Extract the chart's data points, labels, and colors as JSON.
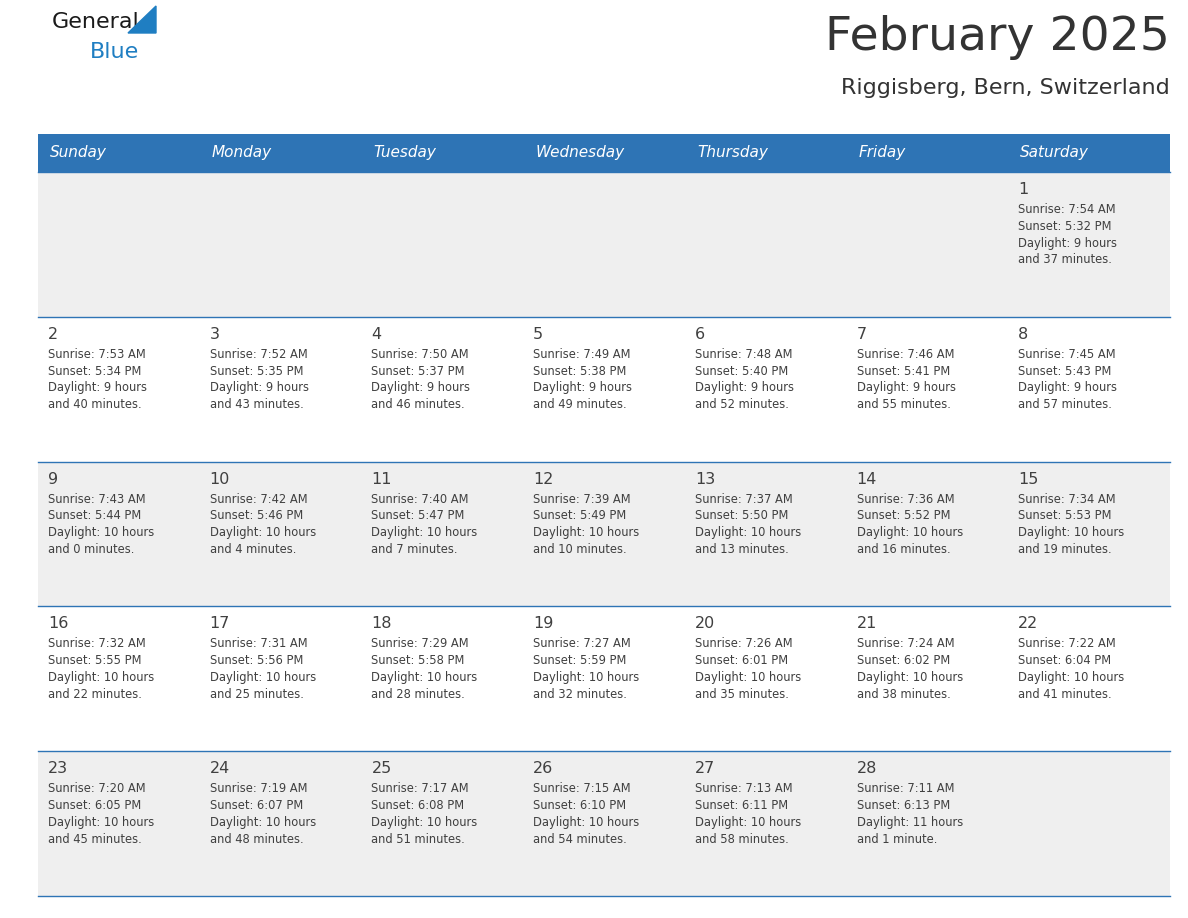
{
  "title": "February 2025",
  "subtitle": "Riggisberg, Bern, Switzerland",
  "header_bg": "#2E74B5",
  "header_text": "#FFFFFF",
  "day_names": [
    "Sunday",
    "Monday",
    "Tuesday",
    "Wednesday",
    "Thursday",
    "Friday",
    "Saturday"
  ],
  "cell_bg_even": "#EFEFEF",
  "cell_bg_odd": "#FFFFFF",
  "separator_color": "#2E74B5",
  "text_color": "#404040",
  "title_color": "#333333",
  "days": [
    {
      "day": 1,
      "col": 6,
      "row": 0,
      "sunrise": "7:54 AM",
      "sunset": "5:32 PM",
      "daylight": "9 hours and 37 minutes"
    },
    {
      "day": 2,
      "col": 0,
      "row": 1,
      "sunrise": "7:53 AM",
      "sunset": "5:34 PM",
      "daylight": "9 hours and 40 minutes"
    },
    {
      "day": 3,
      "col": 1,
      "row": 1,
      "sunrise": "7:52 AM",
      "sunset": "5:35 PM",
      "daylight": "9 hours and 43 minutes"
    },
    {
      "day": 4,
      "col": 2,
      "row": 1,
      "sunrise": "7:50 AM",
      "sunset": "5:37 PM",
      "daylight": "9 hours and 46 minutes"
    },
    {
      "day": 5,
      "col": 3,
      "row": 1,
      "sunrise": "7:49 AM",
      "sunset": "5:38 PM",
      "daylight": "9 hours and 49 minutes"
    },
    {
      "day": 6,
      "col": 4,
      "row": 1,
      "sunrise": "7:48 AM",
      "sunset": "5:40 PM",
      "daylight": "9 hours and 52 minutes"
    },
    {
      "day": 7,
      "col": 5,
      "row": 1,
      "sunrise": "7:46 AM",
      "sunset": "5:41 PM",
      "daylight": "9 hours and 55 minutes"
    },
    {
      "day": 8,
      "col": 6,
      "row": 1,
      "sunrise": "7:45 AM",
      "sunset": "5:43 PM",
      "daylight": "9 hours and 57 minutes"
    },
    {
      "day": 9,
      "col": 0,
      "row": 2,
      "sunrise": "7:43 AM",
      "sunset": "5:44 PM",
      "daylight": "10 hours and 0 minutes"
    },
    {
      "day": 10,
      "col": 1,
      "row": 2,
      "sunrise": "7:42 AM",
      "sunset": "5:46 PM",
      "daylight": "10 hours and 4 minutes"
    },
    {
      "day": 11,
      "col": 2,
      "row": 2,
      "sunrise": "7:40 AM",
      "sunset": "5:47 PM",
      "daylight": "10 hours and 7 minutes"
    },
    {
      "day": 12,
      "col": 3,
      "row": 2,
      "sunrise": "7:39 AM",
      "sunset": "5:49 PM",
      "daylight": "10 hours and 10 minutes"
    },
    {
      "day": 13,
      "col": 4,
      "row": 2,
      "sunrise": "7:37 AM",
      "sunset": "5:50 PM",
      "daylight": "10 hours and 13 minutes"
    },
    {
      "day": 14,
      "col": 5,
      "row": 2,
      "sunrise": "7:36 AM",
      "sunset": "5:52 PM",
      "daylight": "10 hours and 16 minutes"
    },
    {
      "day": 15,
      "col": 6,
      "row": 2,
      "sunrise": "7:34 AM",
      "sunset": "5:53 PM",
      "daylight": "10 hours and 19 minutes"
    },
    {
      "day": 16,
      "col": 0,
      "row": 3,
      "sunrise": "7:32 AM",
      "sunset": "5:55 PM",
      "daylight": "10 hours and 22 minutes"
    },
    {
      "day": 17,
      "col": 1,
      "row": 3,
      "sunrise": "7:31 AM",
      "sunset": "5:56 PM",
      "daylight": "10 hours and 25 minutes"
    },
    {
      "day": 18,
      "col": 2,
      "row": 3,
      "sunrise": "7:29 AM",
      "sunset": "5:58 PM",
      "daylight": "10 hours and 28 minutes"
    },
    {
      "day": 19,
      "col": 3,
      "row": 3,
      "sunrise": "7:27 AM",
      "sunset": "5:59 PM",
      "daylight": "10 hours and 32 minutes"
    },
    {
      "day": 20,
      "col": 4,
      "row": 3,
      "sunrise": "7:26 AM",
      "sunset": "6:01 PM",
      "daylight": "10 hours and 35 minutes"
    },
    {
      "day": 21,
      "col": 5,
      "row": 3,
      "sunrise": "7:24 AM",
      "sunset": "6:02 PM",
      "daylight": "10 hours and 38 minutes"
    },
    {
      "day": 22,
      "col": 6,
      "row": 3,
      "sunrise": "7:22 AM",
      "sunset": "6:04 PM",
      "daylight": "10 hours and 41 minutes"
    },
    {
      "day": 23,
      "col": 0,
      "row": 4,
      "sunrise": "7:20 AM",
      "sunset": "6:05 PM",
      "daylight": "10 hours and 45 minutes"
    },
    {
      "day": 24,
      "col": 1,
      "row": 4,
      "sunrise": "7:19 AM",
      "sunset": "6:07 PM",
      "daylight": "10 hours and 48 minutes"
    },
    {
      "day": 25,
      "col": 2,
      "row": 4,
      "sunrise": "7:17 AM",
      "sunset": "6:08 PM",
      "daylight": "10 hours and 51 minutes"
    },
    {
      "day": 26,
      "col": 3,
      "row": 4,
      "sunrise": "7:15 AM",
      "sunset": "6:10 PM",
      "daylight": "10 hours and 54 minutes"
    },
    {
      "day": 27,
      "col": 4,
      "row": 4,
      "sunrise": "7:13 AM",
      "sunset": "6:11 PM",
      "daylight": "10 hours and 58 minutes"
    },
    {
      "day": 28,
      "col": 5,
      "row": 4,
      "sunrise": "7:11 AM",
      "sunset": "6:13 PM",
      "daylight": "11 hours and 1 minute"
    }
  ],
  "num_rows": 5,
  "num_cols": 7,
  "logo_color_general": "#1a1a1a",
  "logo_color_blue": "#1F7EC2"
}
